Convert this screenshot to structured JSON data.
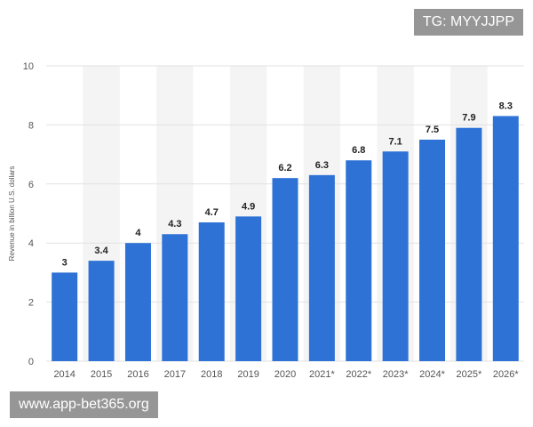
{
  "overlays": {
    "top_right_text": "TG: MYYJJPP",
    "bottom_left_text": "www.app-bet365.org"
  },
  "colors": {
    "bar": "#2f72d6",
    "band": "#f4f4f4",
    "grid": "#e2e2e2"
  },
  "chart_data": {
    "type": "bar",
    "categories": [
      "2014",
      "2015",
      "2016",
      "2017",
      "2018",
      "2019",
      "2020",
      "2021*",
      "2022*",
      "2023*",
      "2024*",
      "2025*",
      "2026*"
    ],
    "values": [
      3,
      3.4,
      4,
      4.3,
      4.7,
      4.9,
      6.2,
      6.3,
      6.8,
      7.1,
      7.5,
      7.9,
      8.3
    ],
    "value_labels": [
      "3",
      "3.4",
      "4",
      "4.3",
      "4.7",
      "4.9",
      "6.2",
      "6.3",
      "6.8",
      "7.1",
      "7.5",
      "7.9",
      "8.3"
    ],
    "ylabel": "Revenue in billion U.S. dollars",
    "xlabel": "",
    "ylim": [
      0,
      10
    ],
    "yticks": [
      0,
      2,
      4,
      6,
      8,
      10
    ],
    "grid": true
  }
}
